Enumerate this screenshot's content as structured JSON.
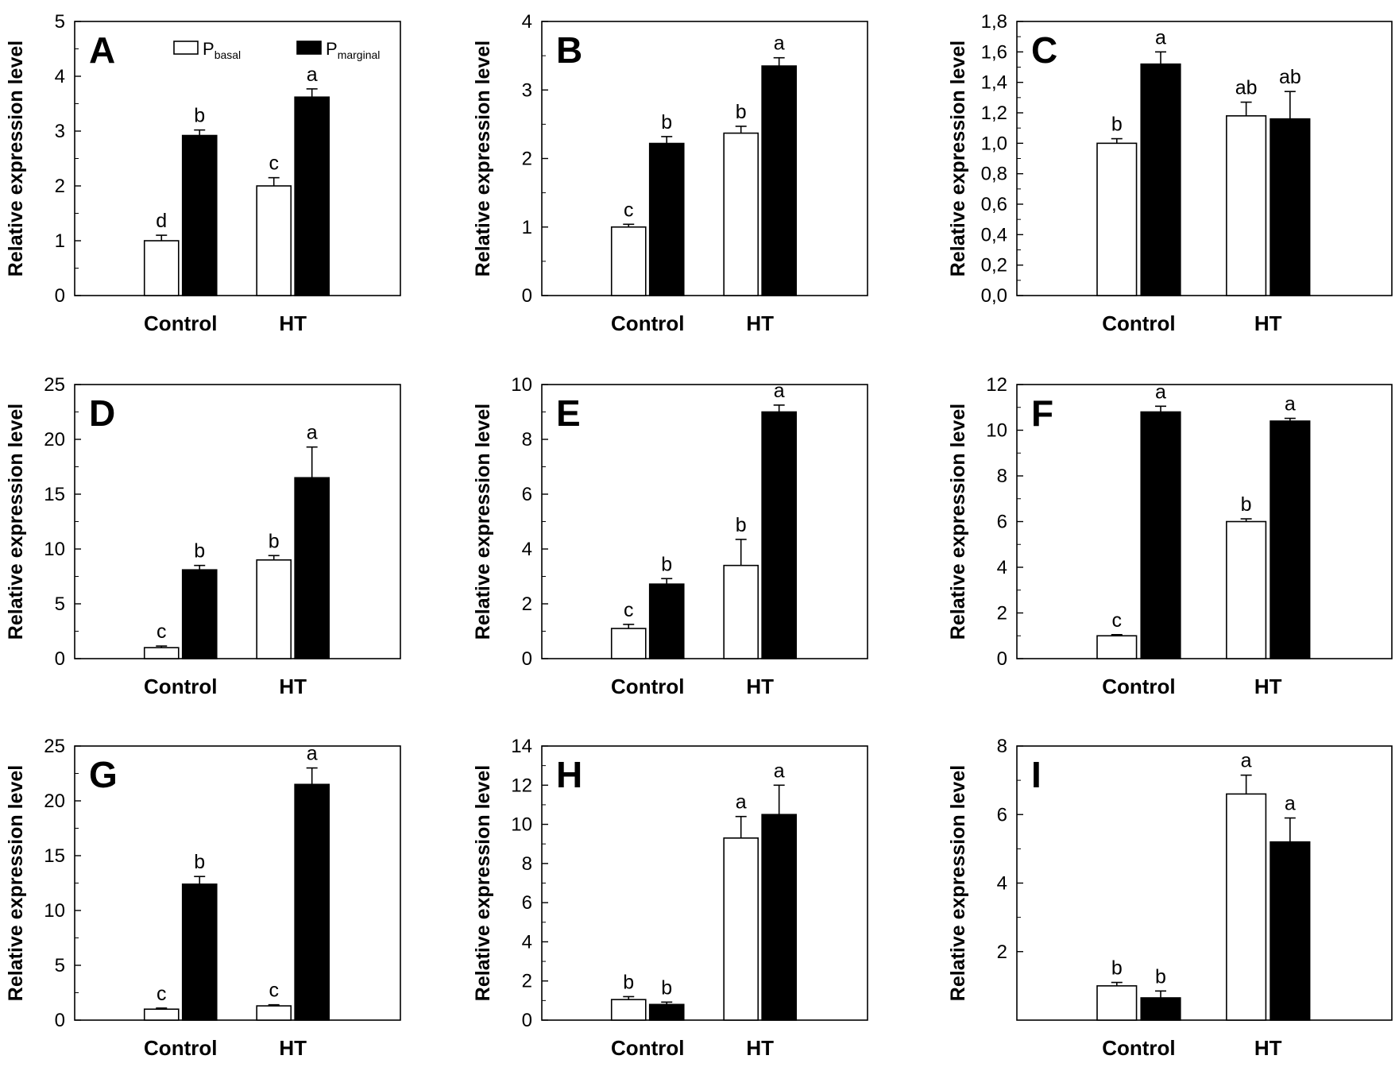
{
  "figure": {
    "legend": {
      "items": [
        {
          "symbol": "P",
          "subscript": "basal",
          "fill": "#ffffff"
        },
        {
          "symbol": "P",
          "subscript": "marginal",
          "fill": "#000000"
        }
      ]
    }
  },
  "colors": {
    "basal": "#ffffff",
    "marginal": "#000000",
    "stroke": "#000000"
  },
  "chart_data": [
    {
      "panel": "A",
      "type": "bar",
      "ylabel": "Relative expression level",
      "ylim": [
        0,
        5
      ],
      "yticks": [
        "0",
        "1",
        "2",
        "3",
        "4",
        "5"
      ],
      "categories": [
        "Control",
        "HT"
      ],
      "series": [
        {
          "name": "P_basal",
          "values": [
            1.0,
            2.0
          ],
          "errors": [
            0.1,
            0.15
          ],
          "letters": [
            "d",
            "c"
          ]
        },
        {
          "name": "P_marginal",
          "values": [
            2.92,
            3.62
          ],
          "errors": [
            0.1,
            0.15
          ],
          "letters": [
            "b",
            "a"
          ]
        }
      ]
    },
    {
      "panel": "B",
      "type": "bar",
      "ylabel": "Relative expression level",
      "ylim": [
        0,
        4
      ],
      "yticks": [
        "0",
        "1",
        "2",
        "3",
        "4"
      ],
      "categories": [
        "Control",
        "HT"
      ],
      "series": [
        {
          "name": "P_basal",
          "values": [
            1.0,
            2.37
          ],
          "errors": [
            0.04,
            0.1
          ],
          "letters": [
            "c",
            "b"
          ]
        },
        {
          "name": "P_marginal",
          "values": [
            2.22,
            3.35
          ],
          "errors": [
            0.1,
            0.12
          ],
          "letters": [
            "b",
            "a"
          ]
        }
      ]
    },
    {
      "panel": "C",
      "type": "bar",
      "ylabel": "Relative expression level",
      "ylim": [
        0,
        1.8
      ],
      "yticks": [
        "0,0",
        "0,2",
        "0,4",
        "0,6",
        "0,8",
        "1,0",
        "1,2",
        "1,4",
        "1,6",
        "1,8"
      ],
      "categories": [
        "Control",
        "HT"
      ],
      "series": [
        {
          "name": "P_basal",
          "values": [
            1.0,
            1.18
          ],
          "errors": [
            0.03,
            0.09
          ],
          "letters": [
            "b",
            "ab"
          ]
        },
        {
          "name": "P_marginal",
          "values": [
            1.52,
            1.16
          ],
          "errors": [
            0.08,
            0.18
          ],
          "letters": [
            "a",
            "ab"
          ]
        }
      ]
    },
    {
      "panel": "D",
      "type": "bar",
      "ylabel": "Relative expression level",
      "ylim": [
        0,
        25
      ],
      "yticks": [
        "0",
        "5",
        "10",
        "15",
        "20",
        "25"
      ],
      "categories": [
        "Control",
        "HT"
      ],
      "series": [
        {
          "name": "P_basal",
          "values": [
            1.0,
            9.0
          ],
          "errors": [
            0.15,
            0.4
          ],
          "letters": [
            "c",
            "b"
          ]
        },
        {
          "name": "P_marginal",
          "values": [
            8.1,
            16.5
          ],
          "errors": [
            0.4,
            2.8
          ],
          "letters": [
            "b",
            "a"
          ]
        }
      ]
    },
    {
      "panel": "E",
      "type": "bar",
      "ylabel": "Relative expression level",
      "ylim": [
        0,
        10
      ],
      "yticks": [
        "0",
        "2",
        "4",
        "6",
        "8",
        "10"
      ],
      "categories": [
        "Control",
        "HT"
      ],
      "series": [
        {
          "name": "P_basal",
          "values": [
            1.1,
            3.4
          ],
          "errors": [
            0.15,
            0.95
          ],
          "letters": [
            "c",
            "b"
          ]
        },
        {
          "name": "P_marginal",
          "values": [
            2.72,
            9.0
          ],
          "errors": [
            0.2,
            0.25
          ],
          "letters": [
            "b",
            "a"
          ]
        }
      ]
    },
    {
      "panel": "F",
      "type": "bar",
      "ylabel": "Relative expression level",
      "ylim": [
        0,
        12
      ],
      "yticks": [
        "0",
        "2",
        "4",
        "6",
        "8",
        "10",
        "12"
      ],
      "categories": [
        "Control",
        "HT"
      ],
      "series": [
        {
          "name": "P_basal",
          "values": [
            1.0,
            6.0
          ],
          "errors": [
            0.05,
            0.12
          ],
          "letters": [
            "c",
            "b"
          ]
        },
        {
          "name": "P_marginal",
          "values": [
            10.8,
            10.4
          ],
          "errors": [
            0.25,
            0.12
          ],
          "letters": [
            "a",
            "a"
          ]
        }
      ]
    },
    {
      "panel": "G",
      "type": "bar",
      "ylabel": "Relative expression level",
      "ylim": [
        0,
        25
      ],
      "yticks": [
        "0",
        "5",
        "10",
        "15",
        "20",
        "25"
      ],
      "categories": [
        "Control",
        "HT"
      ],
      "series": [
        {
          "name": "P_basal",
          "values": [
            1.0,
            1.3
          ],
          "errors": [
            0.1,
            0.1
          ],
          "letters": [
            "c",
            "c"
          ]
        },
        {
          "name": "P_marginal",
          "values": [
            12.4,
            21.5
          ],
          "errors": [
            0.7,
            1.5
          ],
          "letters": [
            "b",
            "a"
          ]
        }
      ]
    },
    {
      "panel": "H",
      "type": "bar",
      "ylabel": "Relative expression level",
      "ylim": [
        0,
        14
      ],
      "yticks": [
        "0",
        "2",
        "4",
        "6",
        "8",
        "10",
        "12",
        "14"
      ],
      "categories": [
        "Control",
        "HT"
      ],
      "series": [
        {
          "name": "P_basal",
          "values": [
            1.05,
            9.3
          ],
          "errors": [
            0.15,
            1.1
          ],
          "letters": [
            "b",
            "a"
          ]
        },
        {
          "name": "P_marginal",
          "values": [
            0.8,
            10.5
          ],
          "errors": [
            0.12,
            1.5
          ],
          "letters": [
            "b",
            "a"
          ]
        }
      ]
    },
    {
      "panel": "I",
      "type": "bar",
      "ylabel": "Relative expression level",
      "ylim": [
        0,
        8
      ],
      "yticks": [
        "2",
        "4",
        "6",
        "8"
      ],
      "categories": [
        "Control",
        "HT"
      ],
      "series": [
        {
          "name": "P_basal",
          "values": [
            1.0,
            6.6
          ],
          "errors": [
            0.1,
            0.55
          ],
          "letters": [
            "b",
            "a"
          ]
        },
        {
          "name": "P_marginal",
          "values": [
            0.65,
            5.2
          ],
          "errors": [
            0.2,
            0.7
          ],
          "letters": [
            "b",
            "a"
          ]
        }
      ]
    }
  ]
}
